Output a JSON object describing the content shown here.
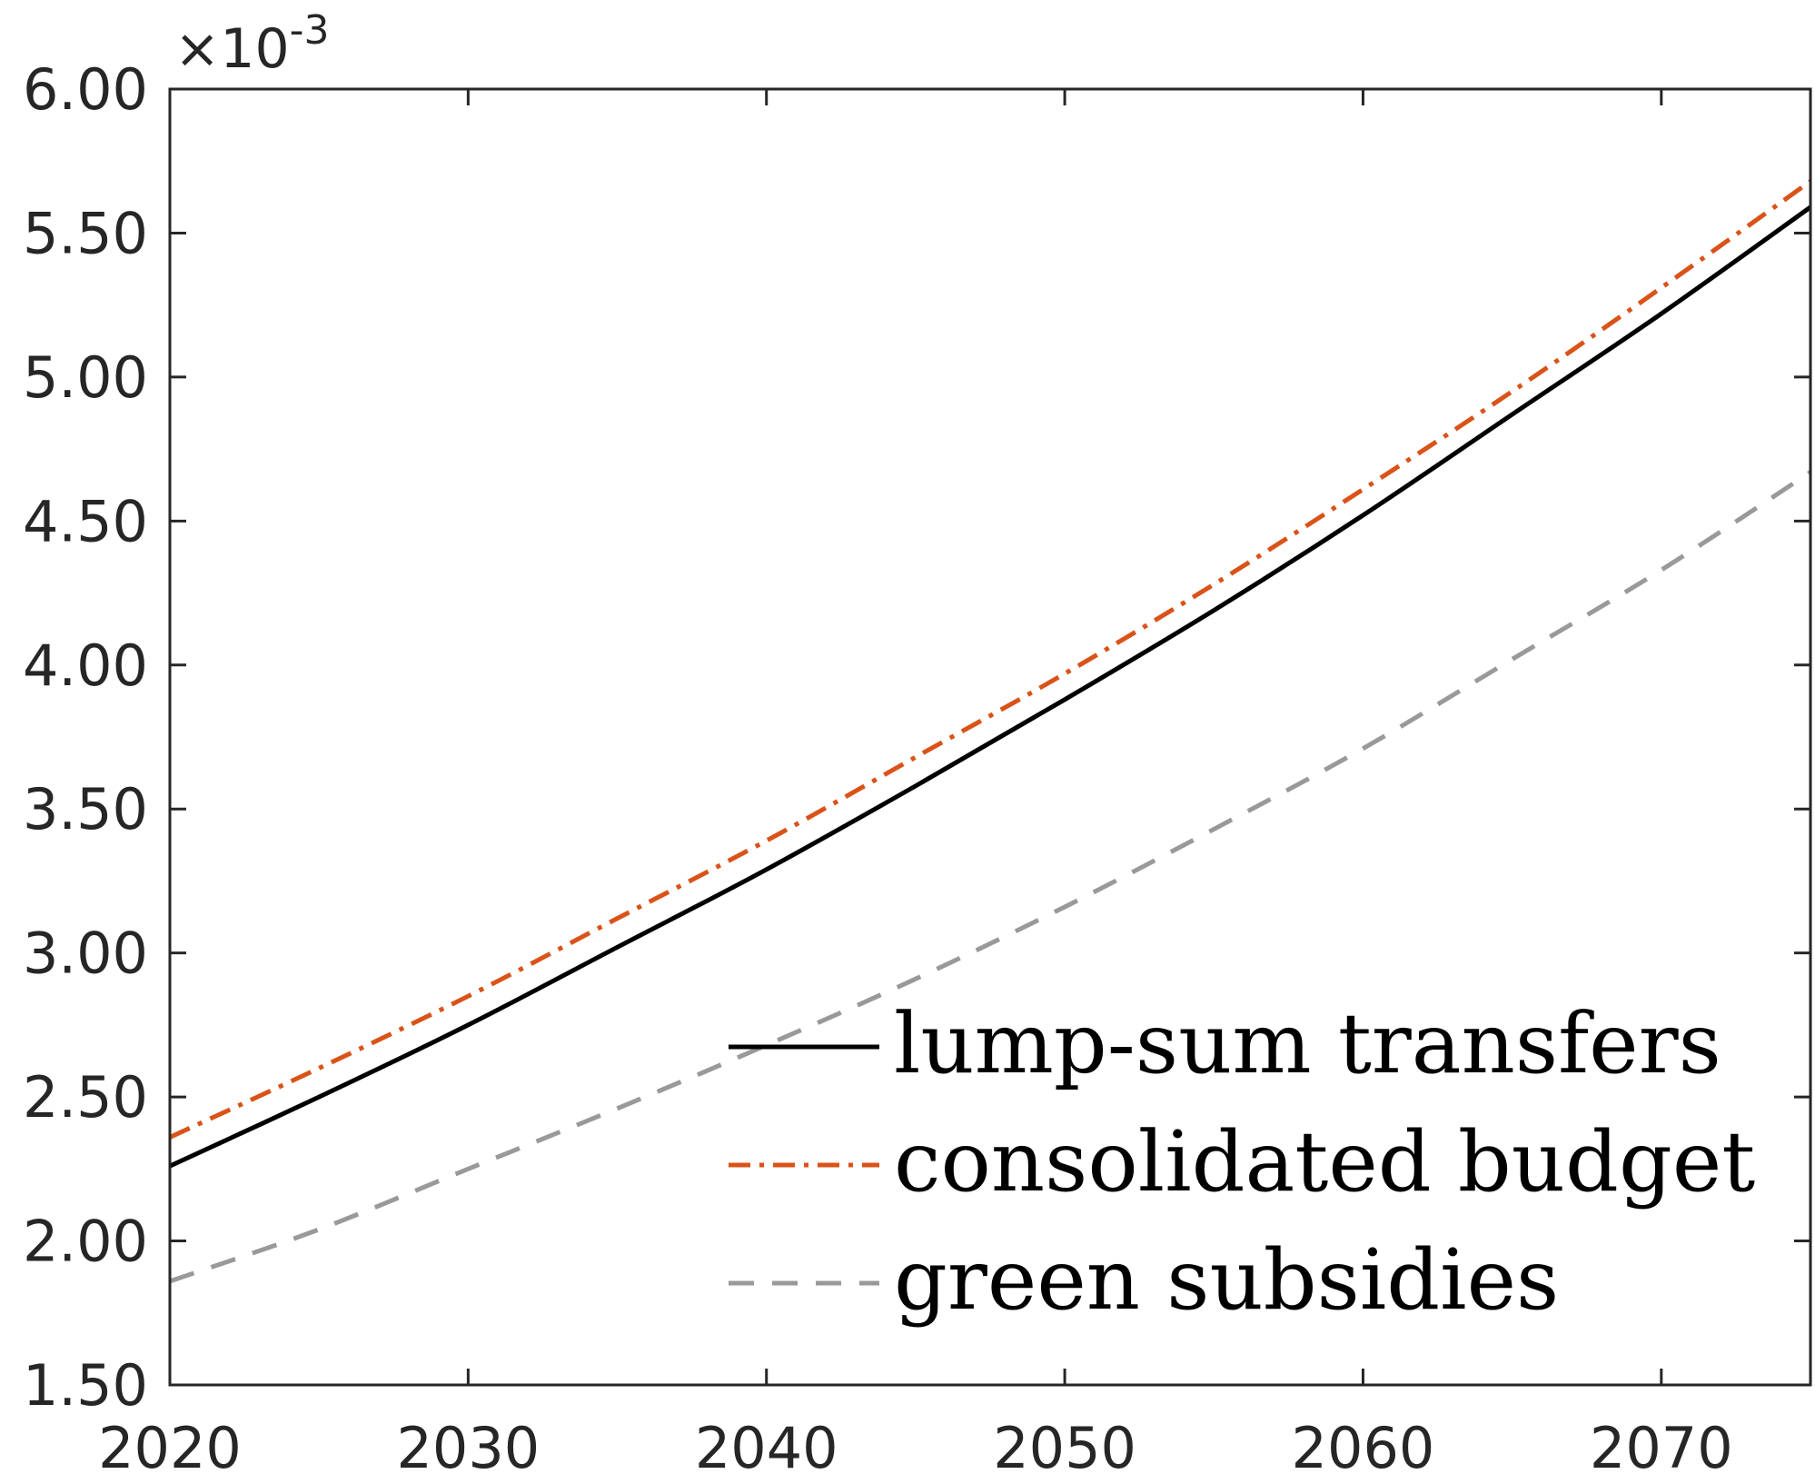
{
  "chart_data": {
    "type": "line",
    "title": "",
    "xlabel": "",
    "ylabel": "",
    "y_exponent_label": "×10",
    "y_exponent_power": "-3",
    "xlim": [
      2020,
      2075
    ],
    "ylim": [
      1.5,
      6.0
    ],
    "x_ticks": [
      2020,
      2030,
      2040,
      2050,
      2060,
      2070
    ],
    "x_tick_labels": [
      "2020",
      "2030",
      "2040",
      "2050",
      "2060",
      "2070"
    ],
    "y_ticks": [
      1.5,
      2.0,
      2.5,
      3.0,
      3.5,
      4.0,
      4.5,
      5.0,
      5.5,
      6.0
    ],
    "y_tick_labels": [
      "1.50",
      "2.00",
      "2.50",
      "3.00",
      "3.50",
      "4.00",
      "4.50",
      "5.00",
      "5.50",
      "6.00"
    ],
    "grid": false,
    "legend_position": "bottom-right",
    "x": [
      2020,
      2025,
      2030,
      2035,
      2040,
      2045,
      2050,
      2055,
      2060,
      2065,
      2070,
      2075
    ],
    "series": [
      {
        "name": "lump-sum transfers",
        "color": "#000000",
        "dash": "solid",
        "values": [
          2.26,
          2.5,
          2.75,
          3.02,
          3.29,
          3.58,
          3.88,
          4.19,
          4.52,
          4.87,
          5.22,
          5.59
        ]
      },
      {
        "name": "consolidated budget",
        "color": "#D95319",
        "dash": "dashdot",
        "values": [
          2.36,
          2.6,
          2.85,
          3.12,
          3.39,
          3.68,
          3.97,
          4.28,
          4.61,
          4.95,
          5.31,
          5.68
        ]
      },
      {
        "name": "green subsidies",
        "color": "#999999",
        "dash": "dashed",
        "values": [
          1.86,
          2.04,
          2.25,
          2.46,
          2.68,
          2.91,
          3.16,
          3.43,
          3.71,
          4.02,
          4.33,
          4.67
        ]
      }
    ]
  }
}
